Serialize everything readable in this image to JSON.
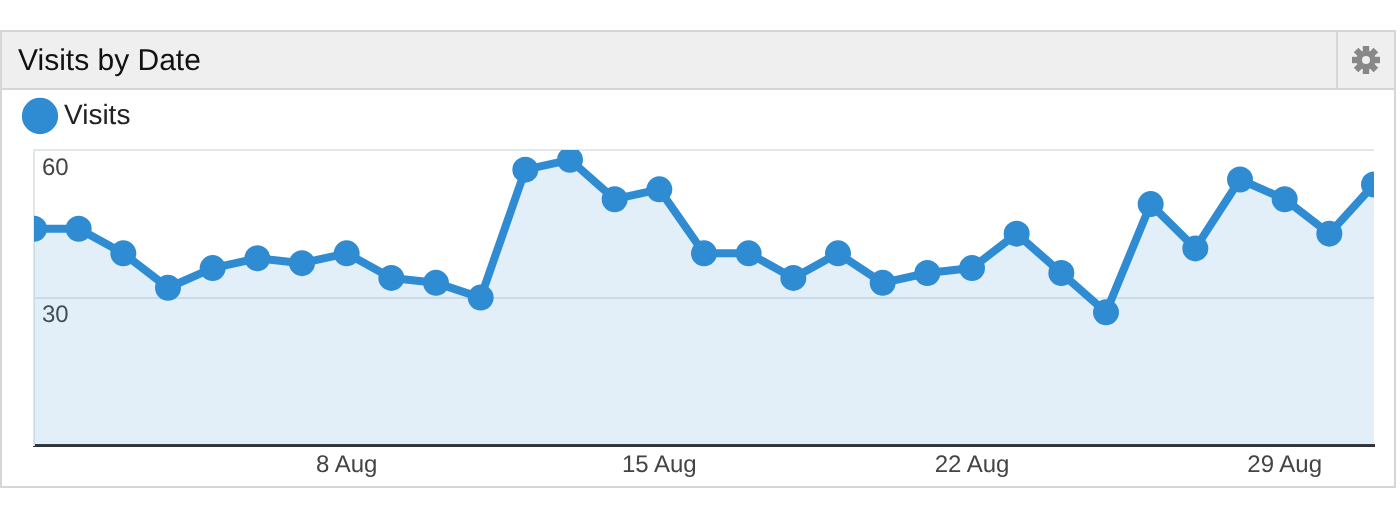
{
  "chart_data": {
    "type": "area",
    "title": "Visits by Date",
    "x": [
      "--08-01",
      "--08-02",
      "--08-03",
      "--08-04",
      "--08-05",
      "--08-06",
      "--08-07",
      "--08-08",
      "--08-09",
      "--08-10",
      "--08-11",
      "--08-12",
      "--08-13",
      "--08-14",
      "--08-15",
      "--08-16",
      "--08-17",
      "--08-18",
      "--08-19",
      "--08-20",
      "--08-21",
      "--08-22",
      "--08-23",
      "--08-24",
      "--08-25",
      "--08-26",
      "--08-27",
      "--08-28",
      "--08-29",
      "--08-30",
      "--08-31"
    ],
    "series": [
      {
        "name": "Visits",
        "color": "#2f8cd2",
        "values": [
          44,
          44,
          39,
          32,
          36,
          38,
          37,
          39,
          34,
          33,
          30,
          56,
          58,
          50,
          52,
          39,
          39,
          34,
          39,
          33,
          35,
          36,
          43,
          35,
          27,
          49,
          40,
          54,
          50,
          43,
          53
        ]
      }
    ],
    "xlim": [
      "--08-01",
      "--08-31"
    ],
    "xticks": [
      {
        "value": "--08-08",
        "label": "8 Aug"
      },
      {
        "value": "--08-15",
        "label": "15 Aug"
      },
      {
        "value": "--08-22",
        "label": "22 Aug"
      },
      {
        "value": "--08-29",
        "label": "29 Aug"
      }
    ],
    "ylim": [
      0,
      60
    ],
    "yticks": [
      30,
      60
    ],
    "grid": "y",
    "legend": "top left",
    "marker": "circle",
    "line_style": "solid"
  }
}
